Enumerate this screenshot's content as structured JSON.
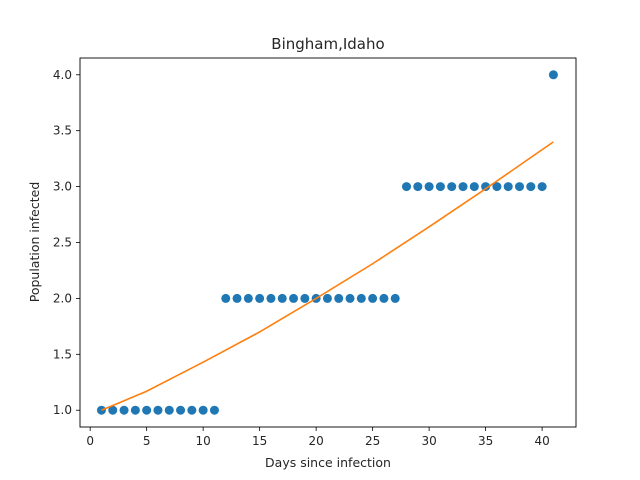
{
  "chart_data": {
    "type": "scatter",
    "title": "Bingham,Idaho",
    "xlabel": "Days since infection",
    "ylabel": "Population infected",
    "xlim": [
      -0.9,
      43.0
    ],
    "ylim": [
      0.85,
      4.15
    ],
    "x_ticks": [
      0,
      5,
      10,
      15,
      20,
      25,
      30,
      35,
      40
    ],
    "y_ticks": [
      1.0,
      1.5,
      2.0,
      2.5,
      3.0,
      3.5,
      4.0
    ],
    "grid": false,
    "series": [
      {
        "kind": "scatter",
        "color": "#1f77b4",
        "x": [
          1,
          2,
          3,
          4,
          5,
          6,
          7,
          8,
          9,
          10,
          11,
          12,
          13,
          14,
          15,
          16,
          17,
          18,
          19,
          20,
          21,
          22,
          23,
          24,
          25,
          26,
          27,
          28,
          29,
          30,
          31,
          32,
          33,
          34,
          35,
          36,
          37,
          38,
          39,
          40,
          41
        ],
        "y": [
          1,
          1,
          1,
          1,
          1,
          1,
          1,
          1,
          1,
          1,
          1,
          2,
          2,
          2,
          2,
          2,
          2,
          2,
          2,
          2,
          2,
          2,
          2,
          2,
          2,
          2,
          2,
          3,
          3,
          3,
          3,
          3,
          3,
          3,
          3,
          3,
          3,
          3,
          3,
          3,
          4
        ]
      },
      {
        "kind": "line",
        "color": "#ff7f0e",
        "x": [
          1,
          5,
          10,
          15,
          20,
          25,
          30,
          35,
          41
        ],
        "y": [
          1.0,
          1.17,
          1.43,
          1.7,
          2.0,
          2.31,
          2.64,
          2.98,
          3.4
        ]
      }
    ]
  }
}
